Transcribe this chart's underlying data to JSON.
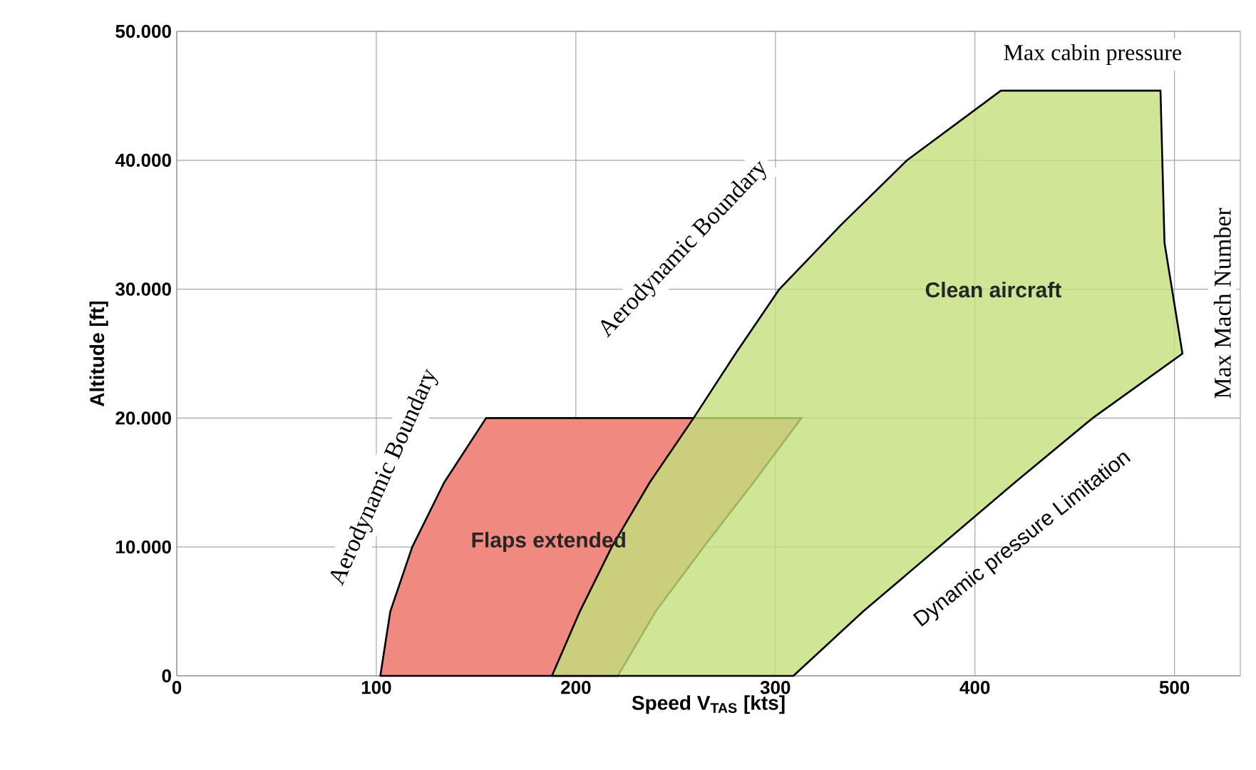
{
  "chart_data": {
    "type": "area",
    "xlabel": "Speed  V$_{TAS}$ [kts]",
    "ylabel": "Altitude [ft]",
    "xlim": [
      0,
      533
    ],
    "ylim": [
      0,
      50000
    ],
    "xticks": [
      0,
      100,
      200,
      300,
      400,
      500
    ],
    "yticks": [
      0,
      {
        "value": 10000,
        "label": "10.000"
      },
      {
        "value": 20000,
        "label": "20.000"
      },
      {
        "value": 30000,
        "label": "30.000"
      },
      {
        "value": 40000,
        "label": "40.000"
      },
      {
        "value": 50000,
        "label": "50.000"
      }
    ],
    "grid": true,
    "series": [
      {
        "name": "Flaps extended",
        "color": "#f08a80",
        "x": [
          102,
          107,
          118,
          134,
          155,
          313,
          289,
          264,
          240,
          221
        ],
        "values": [
          0,
          5000,
          10000,
          15000,
          20000,
          20000,
          15000,
          10000,
          5000,
          0
        ]
      },
      {
        "name": "Clean aircraft",
        "color": "#c2e07a",
        "x": [
          188,
          202,
          218,
          237,
          259,
          280,
          302,
          333,
          366,
          413,
          493,
          495,
          504,
          459,
          420,
          382,
          344,
          309
        ],
        "values": [
          0,
          5000,
          10000,
          15000,
          20000,
          25000,
          30000,
          35000,
          40000,
          45400,
          45400,
          33600,
          25000,
          20000,
          15000,
          10000,
          5000,
          0
        ]
      }
    ],
    "annotations": [
      "Aerodynamic  Boundary",
      "Aerodynamic  Boundary",
      "Max cabin pressure",
      "Max Mach Number",
      "Dynamic pressure Limitation"
    ]
  }
}
